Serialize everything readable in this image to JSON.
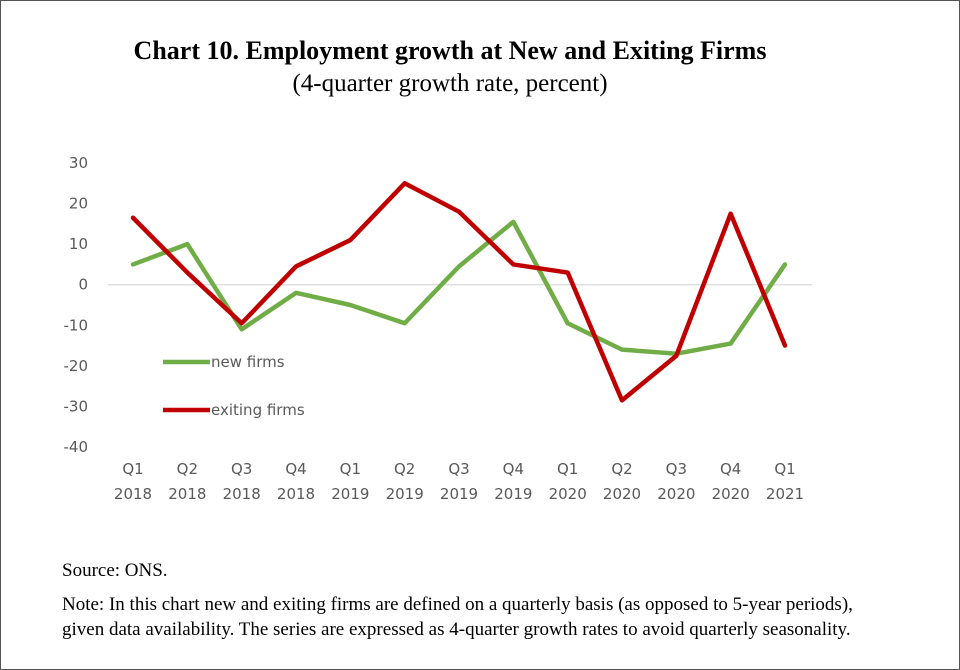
{
  "title": "Chart 10. Employment growth at New and Exiting Firms",
  "subtitle": "(4-quarter growth rate, percent)",
  "source": "Source: ONS.",
  "note": "Note: In this chart new and exiting firms are defined on a quarterly basis (as opposed to 5-year periods), given data availability. The series are expressed as 4-quarter growth rates to avoid quarterly seasonality.",
  "chart_data": {
    "type": "line",
    "title": "Chart 10. Employment growth at New and Exiting Firms",
    "subtitle": "(4-quarter growth rate, percent)",
    "categories": [
      [
        "Q1",
        "2018"
      ],
      [
        "Q2",
        "2018"
      ],
      [
        "Q3",
        "2018"
      ],
      [
        "Q4",
        "2018"
      ],
      [
        "Q1",
        "2019"
      ],
      [
        "Q2",
        "2019"
      ],
      [
        "Q3",
        "2019"
      ],
      [
        "Q4",
        "2019"
      ],
      [
        "Q1",
        "2020"
      ],
      [
        "Q2",
        "2020"
      ],
      [
        "Q3",
        "2020"
      ],
      [
        "Q4",
        "2020"
      ],
      [
        "Q1",
        "2021"
      ]
    ],
    "ylim": [
      -40,
      30
    ],
    "yticks": [
      30,
      20,
      10,
      0,
      -10,
      -20,
      -30,
      -40
    ],
    "grid": false,
    "zero_line": true,
    "legend_position": "inside-left",
    "series": [
      {
        "name": "new firms",
        "color": "#70AD47",
        "values": [
          5,
          10,
          -11,
          -2,
          -5,
          -9.5,
          4.5,
          15.5,
          -9.5,
          -16,
          -17,
          -14.5,
          5
        ]
      },
      {
        "name": "exiting firms",
        "color": "#C00000",
        "values": [
          16.5,
          3,
          -9.5,
          4.5,
          11,
          25,
          18,
          5,
          3,
          -28.5,
          -17.5,
          17.5,
          -15
        ]
      }
    ]
  }
}
